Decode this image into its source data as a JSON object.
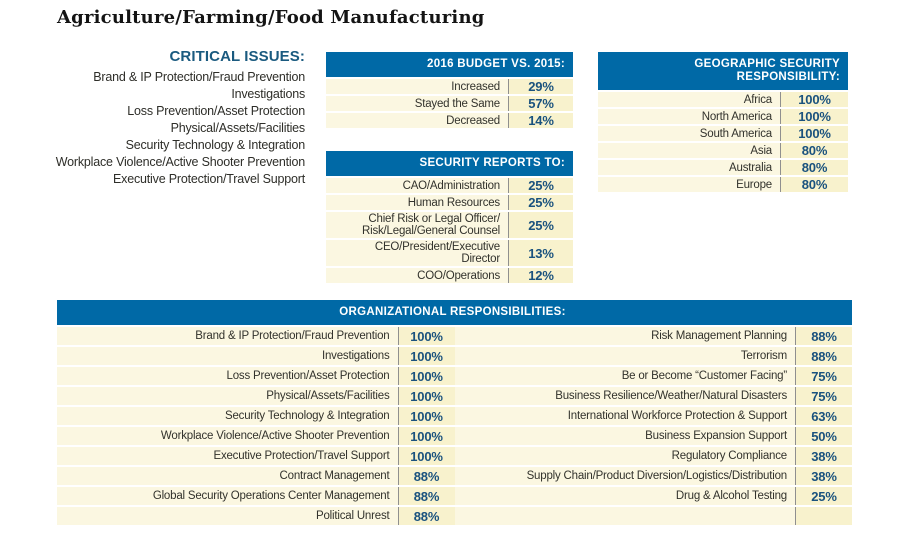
{
  "title": "Agriculture/Farming/Food Manufacturing",
  "critical_issues": {
    "heading": "CRITICAL ISSUES:",
    "items": [
      "Brand & IP Protection/Fraud Prevention",
      "Investigations",
      "Loss Prevention/Asset Protection",
      "Physical/Assets/Facilities",
      "Security Technology & Integration",
      "Workplace Violence/Active Shooter Prevention",
      "Executive Protection/Travel Support"
    ]
  },
  "budget_table": {
    "header": "2016 BUDGET VS. 2015:",
    "rows": [
      {
        "label": "Increased",
        "value": "29%"
      },
      {
        "label": "Stayed the Same",
        "value": "57%"
      },
      {
        "label": "Decreased",
        "value": "14%"
      }
    ]
  },
  "reports_table": {
    "header": "SECURITY REPORTS TO:",
    "rows": [
      {
        "label": "CAO/Administration",
        "value": "25%"
      },
      {
        "label": "Human Resources",
        "value": "25%"
      },
      {
        "label": "Chief Risk or Legal Officer/\nRisk/Legal/General Counsel",
        "value": "25%"
      },
      {
        "label": "CEO/President/Executive Director",
        "value": "13%"
      },
      {
        "label": "COO/Operations",
        "value": "12%"
      }
    ]
  },
  "geographic_table": {
    "header": "GEOGRAPHIC SECURITY RESPONSIBILITY:",
    "rows": [
      {
        "label": "Africa",
        "value": "100%"
      },
      {
        "label": "North America",
        "value": "100%"
      },
      {
        "label": "South America",
        "value": "100%"
      },
      {
        "label": "Asia",
        "value": "80%"
      },
      {
        "label": "Australia",
        "value": "80%"
      },
      {
        "label": "Europe",
        "value": "80%"
      }
    ]
  },
  "organizational_table": {
    "header": "ORGANIZATIONAL RESPONSIBILITIES:",
    "left_rows": [
      {
        "label": "Brand & IP Protection/Fraud Prevention",
        "value": "100%"
      },
      {
        "label": "Investigations",
        "value": "100%"
      },
      {
        "label": "Loss Prevention/Asset Protection",
        "value": "100%"
      },
      {
        "label": "Physical/Assets/Facilities",
        "value": "100%"
      },
      {
        "label": "Security Technology & Integration",
        "value": "100%"
      },
      {
        "label": "Workplace Violence/Active Shooter Prevention",
        "value": "100%"
      },
      {
        "label": "Executive Protection/Travel Support",
        "value": "100%"
      },
      {
        "label": "Contract Management",
        "value": "88%"
      },
      {
        "label": "Global Security Operations Center Management",
        "value": "88%"
      },
      {
        "label": "Political Unrest",
        "value": "88%"
      }
    ],
    "right_rows": [
      {
        "label": "Risk Management Planning",
        "value": "88%"
      },
      {
        "label": "Terrorism",
        "value": "88%"
      },
      {
        "label": "Be or Become “Customer Facing”",
        "value": "75%"
      },
      {
        "label": "Business Resilience/Weather/Natural Disasters",
        "value": "75%"
      },
      {
        "label": "International Workforce Protection & Support",
        "value": "63%"
      },
      {
        "label": "Business Expansion Support",
        "value": "50%"
      },
      {
        "label": "Regulatory Compliance",
        "value": "38%"
      },
      {
        "label": "Supply Chain/Product Diversion/Logistics/Distribution",
        "value": "38%"
      },
      {
        "label": "Drug & Alcohol Testing",
        "value": "25%"
      },
      {
        "label": "",
        "value": ""
      }
    ]
  },
  "colors": {
    "header_blue": "#0069a6",
    "accent_text_blue": "#1a527e",
    "heading_blue": "#1a5a7f",
    "row_cream": "#fbf7e1",
    "value_yellow": "#f8f2cd",
    "divider_gray": "#8f8f8f"
  }
}
